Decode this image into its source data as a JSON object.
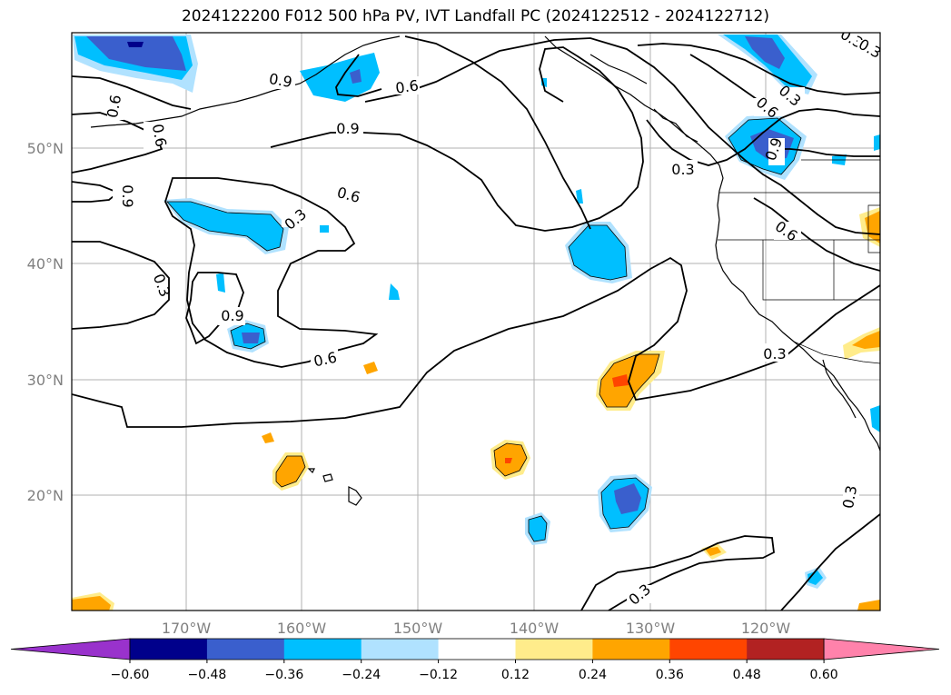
{
  "title": "2024122200 F012 500 hPa PV, IVT Landfall PC (2024122512 - 2024122712)",
  "map": {
    "longitude_labels": [
      "170°W",
      "160°W",
      "150°W",
      "140°W",
      "130°W",
      "120°W"
    ],
    "latitude_labels": [
      "50°N",
      "40°N",
      "30°N",
      "20°N"
    ],
    "contour_labels": [
      "0.9",
      "0.6",
      "0.6",
      "0.6",
      "0.9",
      "0.6",
      "0.3",
      "0.9",
      "0.3",
      "0.9",
      "0.6",
      "0.3",
      "0.6",
      "0.3",
      "0.9",
      "0.6",
      "0.3",
      "0.3",
      "0.3",
      "0.3",
      "0.3"
    ]
  },
  "colorbar": {
    "ticks": [
      "−0.60",
      "−0.48",
      "−0.36",
      "−0.24",
      "−0.12",
      "0.12",
      "0.24",
      "0.36",
      "0.48",
      "0.60"
    ],
    "colors": [
      "#9932cc",
      "#00008b",
      "#3a5fcd",
      "#00bfff",
      "#b0e2ff",
      "#ffffff",
      "#ffec8b",
      "#ffa500",
      "#ff4500",
      "#b22222",
      "#ff82ab"
    ]
  }
}
